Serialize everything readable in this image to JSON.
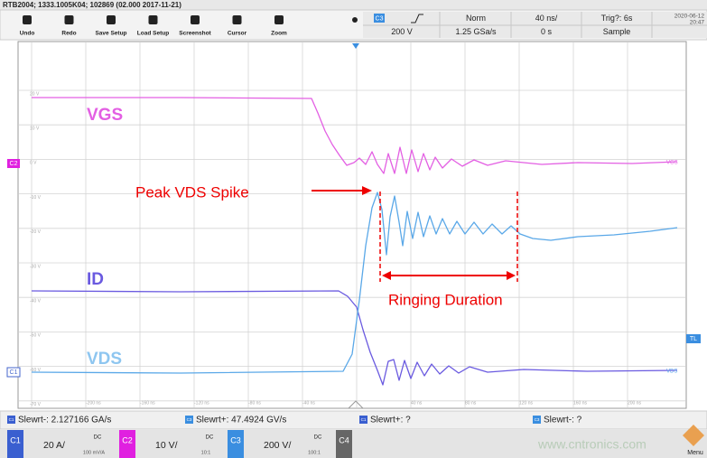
{
  "title_bar": "RTB2004; 1333.1005K04; 102869 (02.000 2017-11-21)",
  "toolbar": {
    "buttons": [
      "Undo",
      "Redo",
      "Save Setup",
      "Load Setup",
      "Screenshot",
      "Cursor",
      "Zoom"
    ]
  },
  "settings": {
    "channel": "C3",
    "mode": "Norm",
    "timebase": "40 ns/",
    "trigger": "Trig?: 6s",
    "date": "2020-06-12",
    "time": "20:47",
    "scale": "200 V",
    "sample_rate": "1.25 GSa/s",
    "offset": "0 s",
    "acquisition": "Sample"
  },
  "plot": {
    "y_labels": [
      "20 V",
      "10 V",
      "0 V",
      "-10 V",
      "-20 V",
      "-30 V",
      "-40 V",
      "-50 V",
      "-60 V",
      "-70 V"
    ],
    "x_labels": [
      "-200 ns",
      "-160 ns",
      "-120 ns",
      "-80 ns",
      "-40 ns",
      "40 ns",
      "80 ns",
      "120 ns",
      "160 ns",
      "200 ns"
    ],
    "trace_labels": [
      "VGS",
      "ID",
      "VDS"
    ],
    "channel_markers": [
      "C2",
      "C1"
    ],
    "trigger_marker": "TL",
    "trace_end_labels": [
      "VGS",
      "VDS"
    ],
    "annotations": {
      "peak": "Peak VDS Spike",
      "ringing": "Ringing Duration"
    }
  },
  "measurements": [
    {
      "channel": "C1",
      "text": "Slewrt-: 2.127166 GA/s"
    },
    {
      "channel": "C3",
      "text": "Slewrt+: 47.4924 GV/s"
    },
    {
      "channel": "C1",
      "text": "Slewrt+: ?"
    },
    {
      "channel": "C3",
      "text": "Slewrt-: ?"
    }
  ],
  "channels": [
    {
      "name": "C1",
      "scale": "20 A/",
      "coupling": "DC",
      "probe": "100 mV/A"
    },
    {
      "name": "C2",
      "scale": "10 V/",
      "coupling": "DC",
      "probe": "10:1"
    },
    {
      "name": "C3",
      "scale": "200 V/",
      "coupling": "DC",
      "probe": "100:1"
    },
    {
      "name": "C4"
    }
  ],
  "watermark": "www.cntronics.com",
  "menu": "Menu"
}
